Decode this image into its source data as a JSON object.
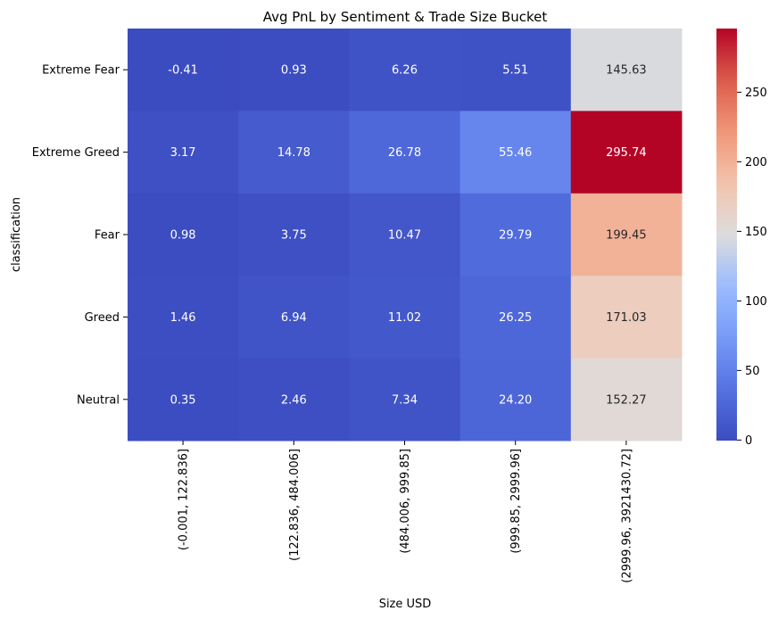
{
  "chart_data": {
    "type": "heatmap",
    "title": "Avg PnL by Sentiment & Trade Size Bucket",
    "xlabel": "Size USD",
    "ylabel": "classification",
    "x_categories": [
      "(-0.001, 122.836]",
      "(122.836, 484.006]",
      "(484.006, 999.85]",
      "(999.85, 2999.96]",
      "(2999.96, 3921430.72]"
    ],
    "y_categories": [
      "Extreme Fear",
      "Extreme Greed",
      "Fear",
      "Greed",
      "Neutral"
    ],
    "values": [
      [
        -0.41,
        0.93,
        6.26,
        5.51,
        145.63
      ],
      [
        3.17,
        14.78,
        26.78,
        55.46,
        295.74
      ],
      [
        0.98,
        3.75,
        10.47,
        29.79,
        199.45
      ],
      [
        1.46,
        6.94,
        11.02,
        26.25,
        171.03
      ],
      [
        0.35,
        2.46,
        7.34,
        24.2,
        152.27
      ]
    ],
    "value_labels": [
      [
        "-0.41",
        "0.93",
        "6.26",
        "5.51",
        "145.63"
      ],
      [
        "3.17",
        "14.78",
        "26.78",
        "55.46",
        "295.74"
      ],
      [
        "0.98",
        "3.75",
        "10.47",
        "29.79",
        "199.45"
      ],
      [
        "1.46",
        "6.94",
        "11.02",
        "26.25",
        "171.03"
      ],
      [
        "0.35",
        "2.46",
        "7.34",
        "24.20",
        "152.27"
      ]
    ],
    "colormap": "coolwarm",
    "vmin": -0.41,
    "vmax": 295.74,
    "colorbar_ticks": [
      0,
      50,
      100,
      150,
      200,
      250
    ],
    "colorbar_tick_labels": [
      "0",
      "50",
      "100",
      "150",
      "200",
      "250"
    ]
  }
}
